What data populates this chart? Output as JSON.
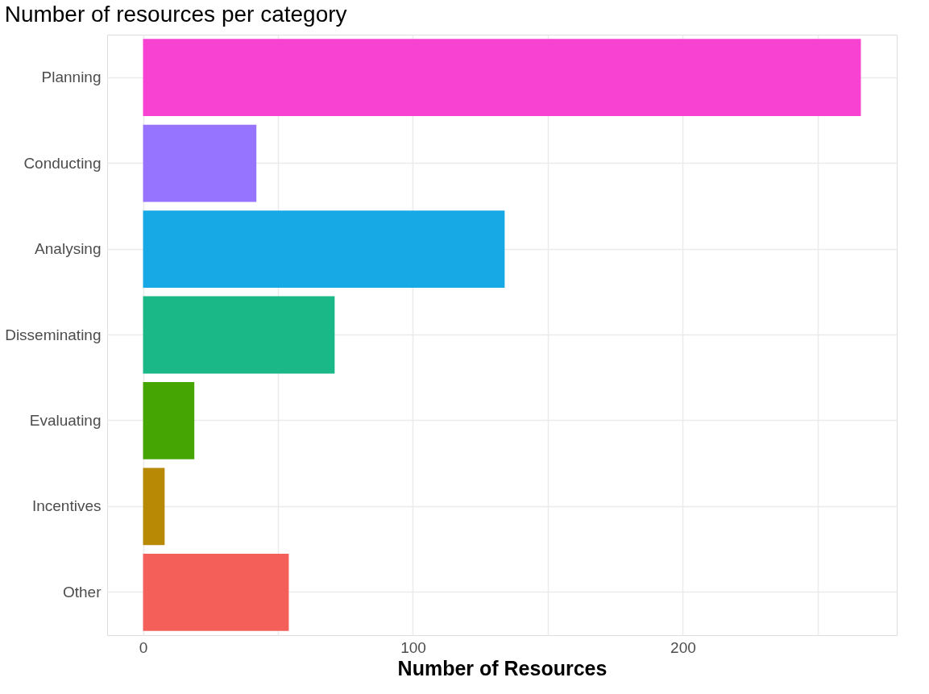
{
  "chart_data": {
    "type": "bar",
    "orientation": "horizontal",
    "title": "Number of resources per category",
    "xlabel": "Number of Resources",
    "categories": [
      "Planning",
      "Conducting",
      "Analysing",
      "Disseminating",
      "Evaluating",
      "Incentives",
      "Other"
    ],
    "values": [
      266,
      42,
      134,
      71,
      19,
      8,
      54
    ],
    "colors": [
      "#f843d2",
      "#9674ff",
      "#17a8e6",
      "#19b886",
      "#44a503",
      "#b88905",
      "#f45f59"
    ],
    "xlim": [
      -13.3,
      279.3
    ],
    "xticks": [
      0,
      {
        "value": 50,
        "label": null
      },
      100,
      {
        "value": 150,
        "label": null
      },
      200,
      {
        "value": 250,
        "label": null
      }
    ],
    "grid": true,
    "legend": false
  }
}
